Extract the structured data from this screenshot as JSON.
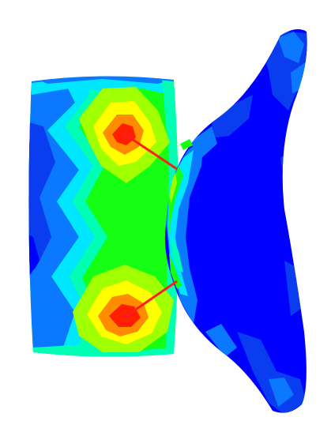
{
  "figure": {
    "kind": "finite-element contour plot",
    "background": "#ffffff",
    "palette": {
      "blue": "#0000ff",
      "mid_blue": "#0a3cf0",
      "azure": "#0a78ff",
      "cyan": "#00e6ff",
      "aqua_green": "#00ffb4",
      "green": "#14ff14",
      "yellow_green": "#a0ff00",
      "yellow": "#ffff00",
      "orange": "#ff8c00",
      "red": "#ff1e00"
    },
    "connector_color": "#ff1e1e",
    "hotspot_count": 2
  }
}
